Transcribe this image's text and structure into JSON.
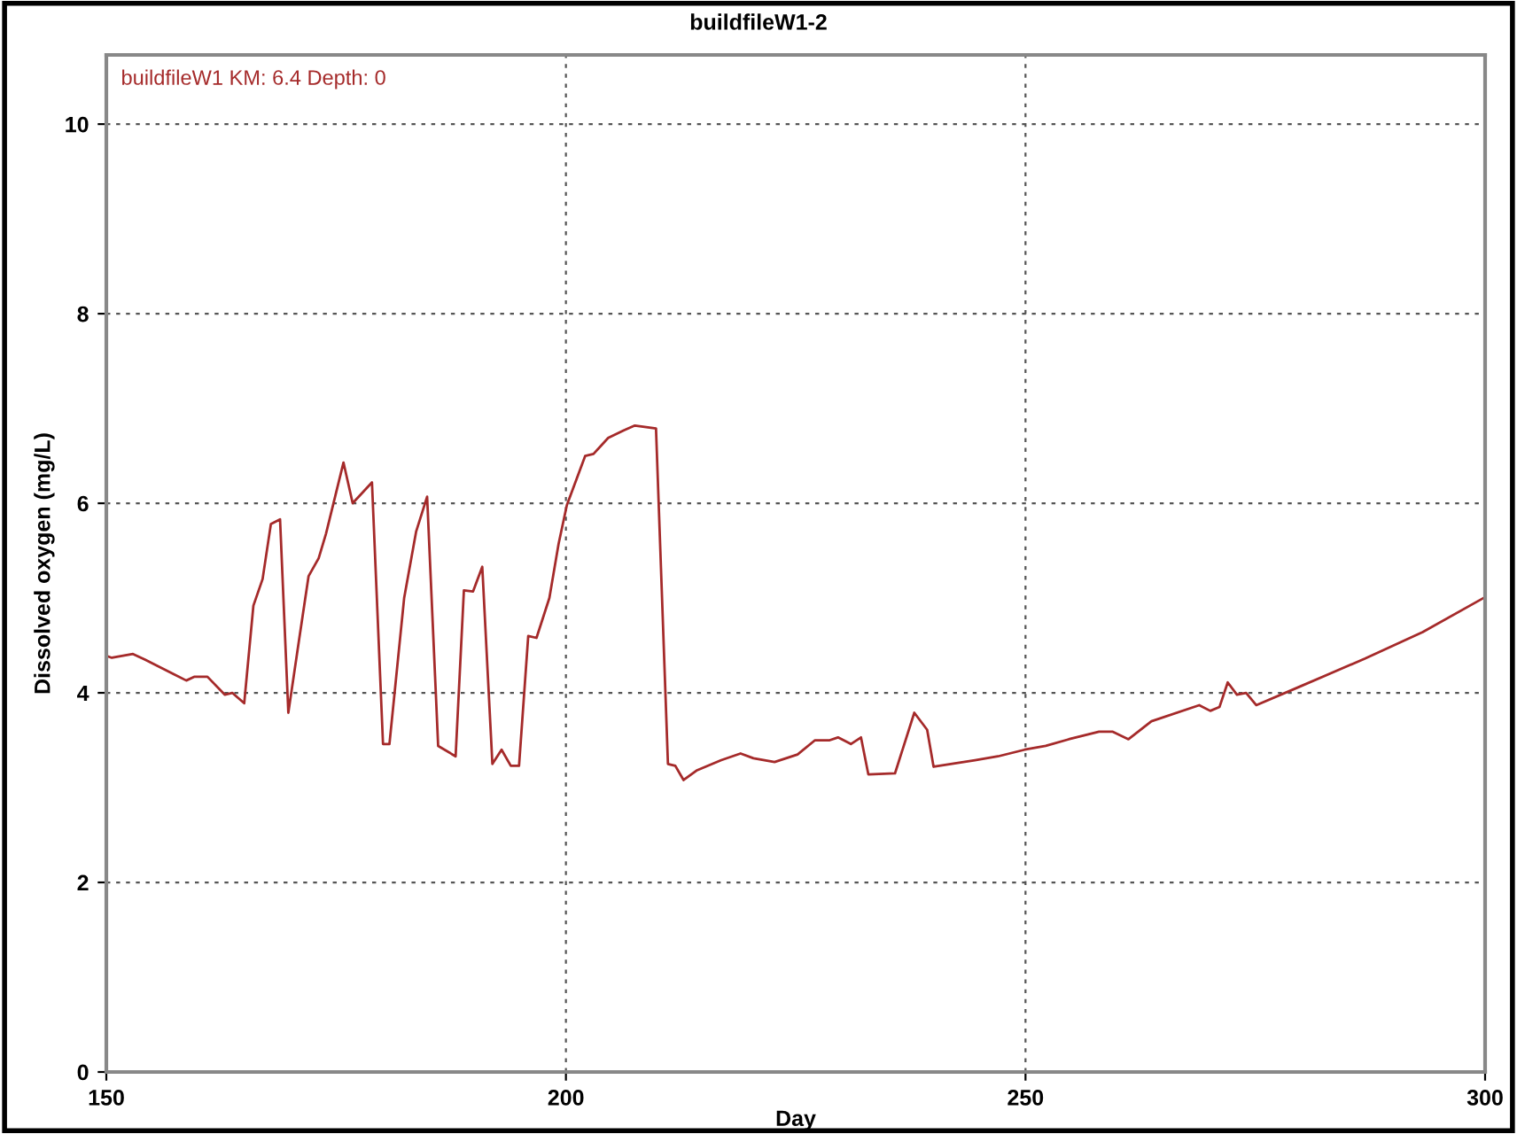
{
  "chart_data": {
    "type": "line",
    "title": "buildfileW1-2",
    "xlabel": "Day",
    "ylabel": "Dissolved oxygen (mg/L)",
    "xlim": [
      150,
      300
    ],
    "ylim": [
      0,
      10.73
    ],
    "xticks": [
      150,
      200,
      250,
      300
    ],
    "yticks": [
      0,
      2,
      4,
      6,
      8,
      10
    ],
    "grid": true,
    "legend": "top left",
    "marker": "none",
    "line_style": "solid",
    "series": [
      {
        "name": "buildfileW1 KM: 6.4 Depth: 0",
        "color": "#a52a2a",
        "x": [
          150.0,
          150.6,
          152.9,
          154.2,
          158.7,
          159.6,
          161.0,
          162.9,
          163.7,
          165.0,
          166.0,
          167.0,
          167.9,
          168.9,
          169.8,
          171.0,
          172.0,
          173.1,
          173.9,
          175.8,
          176.8,
          178.9,
          180.1,
          180.8,
          182.4,
          183.7,
          184.9,
          186.1,
          188.0,
          188.9,
          189.9,
          190.9,
          192.0,
          193.0,
          194.0,
          194.9,
          195.9,
          196.8,
          198.2,
          199.2,
          200.1,
          202.1,
          203.0,
          204.6,
          206.3,
          207.5,
          209.8,
          211.1,
          211.9,
          212.8,
          214.2,
          216.9,
          219.0,
          220.4,
          222.7,
          225.2,
          227.1,
          228.7,
          229.6,
          231.0,
          232.1,
          232.9,
          235.8,
          237.9,
          239.3,
          240.0,
          244.5,
          247.0,
          249.9,
          252.2,
          254.7,
          258.0,
          259.5,
          261.2,
          263.7,
          268.9,
          270.1,
          271.1,
          272.0,
          273.0,
          274.0,
          275.1,
          279.7,
          286.9,
          293.2,
          300.0
        ],
        "values": [
          4.39,
          4.37,
          4.41,
          4.35,
          4.13,
          4.17,
          4.17,
          3.98,
          4.0,
          3.89,
          4.92,
          5.2,
          5.78,
          5.83,
          3.79,
          4.58,
          5.23,
          5.42,
          5.68,
          6.43,
          6.0,
          6.22,
          3.46,
          3.46,
          5.0,
          5.7,
          6.07,
          3.44,
          3.33,
          5.08,
          5.07,
          5.33,
          3.25,
          3.4,
          3.23,
          3.23,
          4.6,
          4.58,
          5.0,
          5.57,
          5.98,
          6.5,
          6.52,
          6.69,
          6.77,
          6.82,
          6.79,
          3.25,
          3.23,
          3.08,
          3.18,
          3.29,
          3.36,
          3.31,
          3.27,
          3.35,
          3.5,
          3.5,
          3.53,
          3.46,
          3.53,
          3.14,
          3.15,
          3.79,
          3.61,
          3.22,
          3.29,
          3.33,
          3.4,
          3.44,
          3.51,
          3.59,
          3.59,
          3.51,
          3.7,
          3.87,
          3.81,
          3.85,
          4.11,
          3.98,
          4.0,
          3.87,
          4.06,
          4.36,
          4.64,
          5.01
        ]
      }
    ]
  }
}
